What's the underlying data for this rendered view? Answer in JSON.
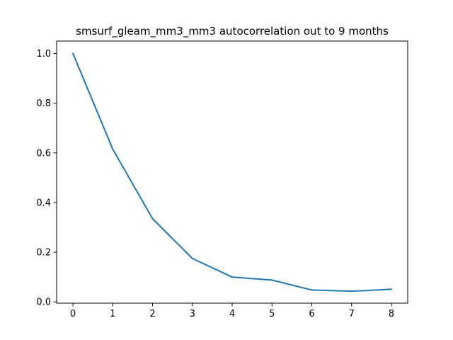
{
  "chart_data": {
    "type": "line",
    "title": "smsurf_gleam_mm3_mm3 autocorrelation out to 9 months",
    "xlabel": "",
    "ylabel": "",
    "xlim": [
      -0.41,
      8.41
    ],
    "ylim": [
      -0.005,
      1.05
    ],
    "x_ticks": [
      "0",
      "1",
      "2",
      "3",
      "4",
      "5",
      "6",
      "7",
      "8"
    ],
    "y_ticks": [
      "0.0",
      "0.2",
      "0.4",
      "0.6",
      "0.8",
      "1.0"
    ],
    "grid": false,
    "series": [
      {
        "name": "autocorrelation",
        "color": "#1f77b4",
        "x": [
          0,
          1,
          2,
          3,
          4,
          5,
          6,
          7,
          8
        ],
        "values": [
          1.0,
          0.615,
          0.335,
          0.175,
          0.1,
          0.088,
          0.048,
          0.043,
          0.051
        ]
      }
    ]
  }
}
